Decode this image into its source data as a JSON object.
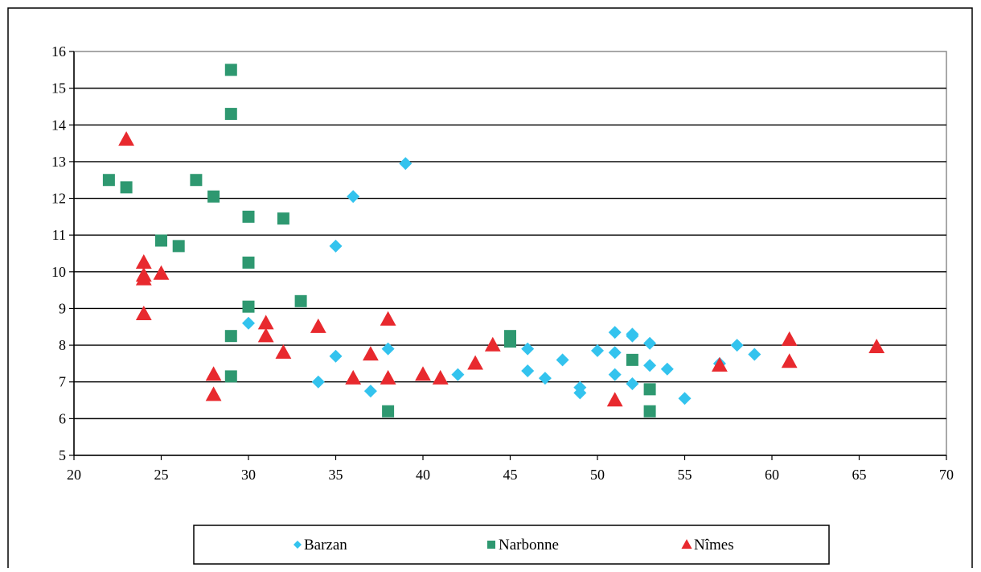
{
  "chart_data": {
    "type": "scatter",
    "title": "",
    "xlabel": "",
    "ylabel": "",
    "xlim": [
      20,
      70
    ],
    "ylim": [
      5,
      16
    ],
    "x_ticks": [
      20,
      25,
      30,
      35,
      40,
      45,
      50,
      55,
      60,
      65,
      70
    ],
    "y_ticks": [
      5,
      6,
      7,
      8,
      9,
      10,
      11,
      12,
      13,
      14,
      15,
      16
    ],
    "grid": "horizontal",
    "legend_position": "bottom",
    "series": [
      {
        "name": "Barzan",
        "marker": "diamond",
        "color": "#33C3EE",
        "points": [
          [
            30,
            8.6
          ],
          [
            34,
            7.0
          ],
          [
            35,
            10.7
          ],
          [
            35,
            7.7
          ],
          [
            36,
            12.05
          ],
          [
            37,
            6.75
          ],
          [
            38,
            7.9
          ],
          [
            39,
            12.95
          ],
          [
            42,
            7.2
          ],
          [
            46,
            7.9
          ],
          [
            46,
            7.3
          ],
          [
            47,
            7.1
          ],
          [
            48,
            7.6
          ],
          [
            49,
            6.85
          ],
          [
            49,
            6.7
          ],
          [
            50,
            7.85
          ],
          [
            51,
            8.35
          ],
          [
            51,
            7.8
          ],
          [
            51,
            7.2
          ],
          [
            52,
            8.3
          ],
          [
            52,
            8.25
          ],
          [
            52,
            6.95
          ],
          [
            53,
            8.05
          ],
          [
            53,
            7.45
          ],
          [
            54,
            7.35
          ],
          [
            55,
            6.55
          ],
          [
            57,
            7.5
          ],
          [
            58,
            8.0
          ],
          [
            59,
            7.75
          ]
        ]
      },
      {
        "name": "Narbonne",
        "marker": "square",
        "color": "#2E9870",
        "points": [
          [
            22,
            12.5
          ],
          [
            23,
            12.3
          ],
          [
            25,
            10.85
          ],
          [
            26,
            10.7
          ],
          [
            27,
            12.5
          ],
          [
            28,
            12.05
          ],
          [
            29,
            15.5
          ],
          [
            29,
            14.3
          ],
          [
            29,
            8.25
          ],
          [
            29,
            7.15
          ],
          [
            30,
            11.5
          ],
          [
            30,
            10.25
          ],
          [
            30,
            9.05
          ],
          [
            32,
            11.45
          ],
          [
            33,
            9.2
          ],
          [
            38,
            6.2
          ],
          [
            45,
            8.25
          ],
          [
            45,
            8.1
          ],
          [
            52,
            7.6
          ],
          [
            53,
            6.8
          ],
          [
            53,
            6.2
          ]
        ]
      },
      {
        "name": "Nîmes",
        "marker": "triangle",
        "color": "#E8292E",
        "points": [
          [
            23,
            13.6
          ],
          [
            24,
            10.25
          ],
          [
            24,
            9.9
          ],
          [
            24,
            9.8
          ],
          [
            24,
            8.85
          ],
          [
            25,
            9.95
          ],
          [
            28,
            7.2
          ],
          [
            28,
            6.65
          ],
          [
            31,
            8.6
          ],
          [
            31,
            8.25
          ],
          [
            32,
            7.8
          ],
          [
            34,
            8.5
          ],
          [
            36,
            7.1
          ],
          [
            37,
            7.75
          ],
          [
            38,
            8.7
          ],
          [
            38,
            7.1
          ],
          [
            40,
            7.2
          ],
          [
            41,
            7.1
          ],
          [
            43,
            7.5
          ],
          [
            44,
            8.0
          ],
          [
            51,
            6.5
          ],
          [
            57,
            7.45
          ],
          [
            61,
            8.15
          ],
          [
            61,
            7.55
          ],
          [
            66,
            7.95
          ]
        ]
      }
    ]
  }
}
